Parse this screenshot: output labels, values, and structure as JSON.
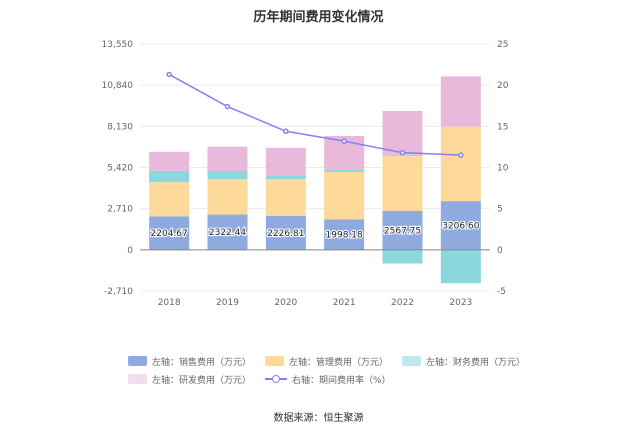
{
  "title": "历年期间费用变化情况",
  "source": "数据来源：恒生聚源",
  "chart_data": {
    "type": "bar",
    "stacked": true,
    "categories": [
      "2018",
      "2019",
      "2020",
      "2021",
      "2022",
      "2023"
    ],
    "left_axis": {
      "ticks": [
        "13,550",
        "10,840",
        "8,130",
        "5,420",
        "2,710",
        "0",
        "-2,710"
      ],
      "min": -2710,
      "max": 13550
    },
    "right_axis": {
      "ticks": [
        "25",
        "20",
        "15",
        "10",
        "5",
        "0",
        "-5"
      ],
      "min": -5,
      "max": 25
    },
    "series": [
      {
        "name": "左轴：销售费用（万元）",
        "type": "bar",
        "color": "#8eaadf",
        "values": [
          2204.67,
          2322.44,
          2226.81,
          1998.18,
          2567.75,
          3206.6
        ],
        "labels": [
          "2204.67",
          "2322.44",
          "2226.81",
          "1998.18",
          "2567.75",
          "3206.60"
        ]
      },
      {
        "name": "左轴：管理费用（万元）",
        "type": "bar",
        "color": "#fdd99a",
        "values": [
          2250,
          2330,
          2430,
          3130,
          3600,
          4900
        ]
      },
      {
        "name": "左轴：财务费用（万元）",
        "type": "bar",
        "color": "#8ad8dc",
        "values": [
          750,
          540,
          210,
          170,
          -900,
          -2200
        ]
      },
      {
        "name": "左轴：研发费用（万元）",
        "type": "bar",
        "color": "#e8b9da",
        "values": [
          1250,
          1600,
          1850,
          2200,
          2970,
          3310
        ]
      },
      {
        "name": "右轴：期间费用率（%）",
        "type": "line",
        "axis": "right",
        "color": "#8283f0",
        "values": [
          21.3,
          17.4,
          14.4,
          13.2,
          11.8,
          11.5
        ]
      }
    ],
    "legend_position": "bottom",
    "grid": true
  }
}
